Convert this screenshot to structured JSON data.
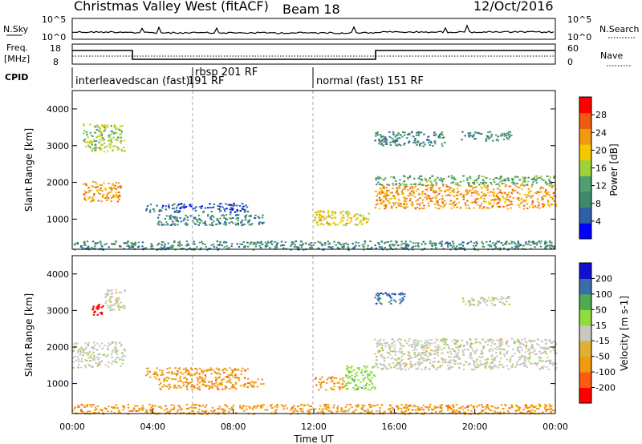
{
  "header": {
    "site": "Christmas Valley West (fitACF)",
    "beam": "Beam 18",
    "date": "12/Oct/2016"
  },
  "noise_panel": {
    "left_label": "N.Sky",
    "left_ticks": [
      "10^5",
      "10^0"
    ],
    "right_label": "N.Search",
    "right_ticks": [
      "10^5",
      "10^0"
    ]
  },
  "freq_panel": {
    "left_label_1": "Freq.",
    "left_label_2": "[MHz]",
    "left_ticks": [
      "18",
      "8"
    ],
    "right_label": "Nave",
    "right_ticks": [
      "60",
      "0"
    ]
  },
  "cpid": {
    "label": "CPID",
    "modes": [
      "interleavedscan (fast)",
      "rbsp 201 RF",
      "191 RF",
      "normal (fast) 151 RF"
    ]
  },
  "colors": {
    "power": [
      "#0000ff",
      "#2e5fa8",
      "#3f8a6a",
      "#4fa070",
      "#9dd23a",
      "#f4c800",
      "#f09a10",
      "#f05a10",
      "#ff0000"
    ],
    "velocity": [
      "#ff0000",
      "#ff5a10",
      "#f09a10",
      "#e0b030",
      "#c8c8c0",
      "#8fdc40",
      "#4faa50",
      "#3a6ea8",
      "#1010d0"
    ]
  },
  "chart_data": [
    {
      "type": "heatmap",
      "title": "",
      "ylabel": "Slant Range [km]",
      "xlabel": "",
      "ylim": [
        180,
        4500
      ],
      "xlim": [
        0,
        24
      ],
      "yticks": [
        "1000",
        "2000",
        "3000",
        "4000"
      ],
      "colorbar": {
        "label": "Power [dB]",
        "ticks": [
          "4",
          "8",
          "12",
          "16",
          "20",
          "24",
          "28"
        ],
        "range": [
          0,
          32
        ]
      },
      "regions": [
        {
          "t0": 0.5,
          "t1": 2.6,
          "r0": 2850,
          "r1": 3600,
          "level": 20
        },
        {
          "t0": 0.5,
          "t1": 2.4,
          "r0": 1500,
          "r1": 2050,
          "level": 28
        },
        {
          "t0": 3.6,
          "t1": 8.7,
          "r0": 1200,
          "r1": 1450,
          "level": 8
        },
        {
          "t0": 4.2,
          "t1": 9.5,
          "r0": 850,
          "r1": 1150,
          "level": 10
        },
        {
          "t0": 12.0,
          "t1": 14.7,
          "r0": 850,
          "r1": 1250,
          "level": 24
        },
        {
          "t0": 15.0,
          "t1": 24.0,
          "r0": 1300,
          "r1": 1950,
          "level": 28
        },
        {
          "t0": 15.0,
          "t1": 24.0,
          "r0": 1950,
          "r1": 2200,
          "level": 14
        },
        {
          "t0": 15.0,
          "t1": 18.5,
          "r0": 3000,
          "r1": 3400,
          "level": 12
        },
        {
          "t0": 19.3,
          "t1": 21.8,
          "r0": 3150,
          "r1": 3400,
          "level": 10
        },
        {
          "t0": 0.0,
          "t1": 24.0,
          "r0": 180,
          "r1": 420,
          "level": 12
        }
      ]
    },
    {
      "type": "heatmap",
      "title": "",
      "ylabel": "Slant Range [km]",
      "xlabel": "Time UT",
      "ylim": [
        180,
        4500
      ],
      "xlim": [
        0,
        24
      ],
      "yticks": [
        "1000",
        "2000",
        "3000",
        "4000"
      ],
      "xticks": [
        "00:00",
        "04:00",
        "08:00",
        "12:00",
        "16:00",
        "20:00",
        "00:00"
      ],
      "colorbar": {
        "label": "Velocity [m s-1]",
        "ticks": [
          "-200",
          "-100",
          "-50",
          "-15",
          "15",
          "50",
          "100",
          "200"
        ]
      },
      "regions": [
        {
          "t0": 0.0,
          "t1": 2.6,
          "r0": 1450,
          "r1": 2150,
          "level": "-15..15"
        },
        {
          "t0": 0.9,
          "t1": 1.5,
          "r0": 2900,
          "r1": 3200,
          "level": "-200"
        },
        {
          "t0": 1.6,
          "t1": 2.6,
          "r0": 3000,
          "r1": 3600,
          "level": "-15..15"
        },
        {
          "t0": 3.6,
          "t1": 8.7,
          "r0": 1150,
          "r1": 1450,
          "level": "-50"
        },
        {
          "t0": 4.2,
          "t1": 9.5,
          "r0": 850,
          "r1": 1150,
          "level": "-50"
        },
        {
          "t0": 12.0,
          "t1": 13.5,
          "r0": 850,
          "r1": 1200,
          "level": "-50"
        },
        {
          "t0": 13.5,
          "t1": 15.0,
          "r0": 850,
          "r1": 1500,
          "level": "15..50"
        },
        {
          "t0": 15.0,
          "t1": 24.0,
          "r0": 1400,
          "r1": 2250,
          "level": "-15..15"
        },
        {
          "t0": 15.0,
          "t1": 16.5,
          "r0": 3200,
          "r1": 3500,
          "level": "100"
        },
        {
          "t0": 19.3,
          "t1": 21.8,
          "r0": 3150,
          "r1": 3400,
          "level": "-15..15"
        },
        {
          "t0": 0.0,
          "t1": 24.0,
          "r0": 180,
          "r1": 450,
          "level": "-50"
        }
      ]
    }
  ]
}
